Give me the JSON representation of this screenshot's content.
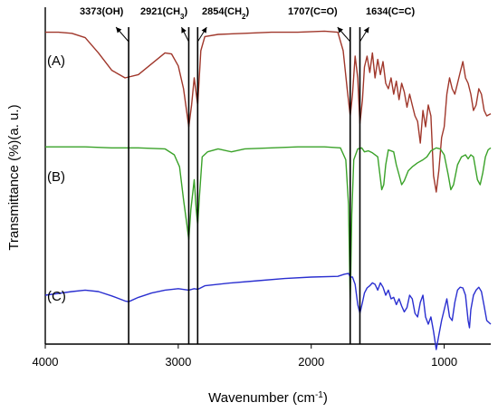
{
  "chart_data": {
    "type": "line",
    "title": "",
    "xlabel": "Wavenumber (cm",
    "xlabel_sup": "-1",
    "xlabel_close": ")",
    "ylabel": "Transmittance (%)(a. u.)",
    "xlim": [
      4000,
      650
    ],
    "x_reversed": true,
    "xticks": [
      4000,
      3000,
      2000,
      1000
    ],
    "tick_labels": [
      "4000",
      "3000",
      "2000",
      "1000"
    ],
    "grid": false,
    "legend": "none",
    "annotations": [
      {
        "wavenumber": 3373,
        "text": "3373(OH)"
      },
      {
        "wavenumber": 2921,
        "text": "2921(CH",
        "sub": "3",
        "close": ")"
      },
      {
        "wavenumber": 2854,
        "text": "2854(CH",
        "sub": "2",
        "close": ")"
      },
      {
        "wavenumber": 1707,
        "text": "1707(C=O)"
      },
      {
        "wavenumber": 1634,
        "text": "1634(C=C)"
      }
    ],
    "series": [
      {
        "label": "(A)",
        "color": "#a0372b",
        "points": [
          [
            4000,
            0.97
          ],
          [
            3900,
            0.97
          ],
          [
            3800,
            0.96
          ],
          [
            3700,
            0.92
          ],
          [
            3600,
            0.78
          ],
          [
            3500,
            0.62
          ],
          [
            3400,
            0.55
          ],
          [
            3300,
            0.58
          ],
          [
            3200,
            0.68
          ],
          [
            3100,
            0.78
          ],
          [
            3050,
            0.77
          ],
          [
            3000,
            0.66
          ],
          [
            2960,
            0.45
          ],
          [
            2921,
            0.1
          ],
          [
            2900,
            0.3
          ],
          [
            2880,
            0.55
          ],
          [
            2854,
            0.3
          ],
          [
            2830,
            0.8
          ],
          [
            2800,
            0.93
          ],
          [
            2700,
            0.95
          ],
          [
            2500,
            0.96
          ],
          [
            2300,
            0.97
          ],
          [
            2100,
            0.97
          ],
          [
            1900,
            0.98
          ],
          [
            1800,
            0.97
          ],
          [
            1760,
            0.8
          ],
          [
            1730,
            0.45
          ],
          [
            1707,
            0.2
          ],
          [
            1690,
            0.4
          ],
          [
            1670,
            0.75
          ],
          [
            1650,
            0.55
          ],
          [
            1634,
            0.13
          ],
          [
            1615,
            0.35
          ],
          [
            1600,
            0.65
          ],
          [
            1580,
            0.75
          ],
          [
            1560,
            0.6
          ],
          [
            1540,
            0.78
          ],
          [
            1520,
            0.55
          ],
          [
            1500,
            0.72
          ],
          [
            1480,
            0.58
          ],
          [
            1460,
            0.7
          ],
          [
            1440,
            0.5
          ],
          [
            1420,
            0.45
          ],
          [
            1400,
            0.55
          ],
          [
            1380,
            0.4
          ],
          [
            1360,
            0.52
          ],
          [
            1340,
            0.35
          ],
          [
            1320,
            0.5
          ],
          [
            1300,
            0.42
          ],
          [
            1280,
            0.28
          ],
          [
            1260,
            0.4
          ],
          [
            1240,
            0.3
          ],
          [
            1220,
            0.2
          ],
          [
            1200,
            0.15
          ],
          [
            1180,
            -0.05
          ],
          [
            1160,
            0.25
          ],
          [
            1140,
            0.1
          ],
          [
            1120,
            0.3
          ],
          [
            1100,
            0.2
          ],
          [
            1080,
            -0.35
          ],
          [
            1060,
            -0.5
          ],
          [
            1040,
            -0.3
          ],
          [
            1020,
            0.0
          ],
          [
            1000,
            0.1
          ],
          [
            980,
            0.4
          ],
          [
            960,
            0.55
          ],
          [
            940,
            0.45
          ],
          [
            920,
            0.4
          ],
          [
            900,
            0.5
          ],
          [
            880,
            0.6
          ],
          [
            860,
            0.7
          ],
          [
            840,
            0.55
          ],
          [
            820,
            0.5
          ],
          [
            800,
            0.4
          ],
          [
            780,
            0.25
          ],
          [
            760,
            0.3
          ],
          [
            740,
            0.45
          ],
          [
            720,
            0.4
          ],
          [
            700,
            0.25
          ],
          [
            680,
            0.2
          ],
          [
            650,
            0.22
          ]
        ]
      },
      {
        "label": "(B)",
        "color": "#3aa229",
        "points": [
          [
            4000,
            0.98
          ],
          [
            3700,
            0.98
          ],
          [
            3500,
            0.97
          ],
          [
            3300,
            0.97
          ],
          [
            3100,
            0.96
          ],
          [
            3030,
            0.9
          ],
          [
            2990,
            0.78
          ],
          [
            2960,
            0.45
          ],
          [
            2935,
            0.2
          ],
          [
            2921,
            0.05
          ],
          [
            2905,
            0.35
          ],
          [
            2880,
            0.65
          ],
          [
            2865,
            0.35
          ],
          [
            2854,
            0.2
          ],
          [
            2840,
            0.5
          ],
          [
            2820,
            0.88
          ],
          [
            2780,
            0.93
          ],
          [
            2700,
            0.96
          ],
          [
            2600,
            0.93
          ],
          [
            2500,
            0.96
          ],
          [
            2300,
            0.97
          ],
          [
            2100,
            0.98
          ],
          [
            1900,
            0.98
          ],
          [
            1780,
            0.97
          ],
          [
            1740,
            0.85
          ],
          [
            1720,
            0.4
          ],
          [
            1707,
            -0.6
          ],
          [
            1695,
            0.3
          ],
          [
            1680,
            0.85
          ],
          [
            1650,
            0.96
          ],
          [
            1620,
            0.97
          ],
          [
            1600,
            0.93
          ],
          [
            1570,
            0.94
          ],
          [
            1540,
            0.92
          ],
          [
            1500,
            0.88
          ],
          [
            1470,
            0.55
          ],
          [
            1455,
            0.6
          ],
          [
            1440,
            0.8
          ],
          [
            1420,
            0.95
          ],
          [
            1380,
            0.93
          ],
          [
            1360,
            0.8
          ],
          [
            1340,
            0.7
          ],
          [
            1320,
            0.6
          ],
          [
            1300,
            0.64
          ],
          [
            1270,
            0.74
          ],
          [
            1240,
            0.78
          ],
          [
            1200,
            0.82
          ],
          [
            1160,
            0.85
          ],
          [
            1130,
            0.88
          ],
          [
            1100,
            0.94
          ],
          [
            1060,
            0.97
          ],
          [
            1030,
            0.96
          ],
          [
            1000,
            0.9
          ],
          [
            970,
            0.7
          ],
          [
            950,
            0.55
          ],
          [
            930,
            0.6
          ],
          [
            900,
            0.8
          ],
          [
            870,
            0.88
          ],
          [
            840,
            0.9
          ],
          [
            820,
            0.86
          ],
          [
            800,
            0.9
          ],
          [
            780,
            0.88
          ],
          [
            750,
            0.65
          ],
          [
            730,
            0.6
          ],
          [
            710,
            0.72
          ],
          [
            690,
            0.88
          ],
          [
            670,
            0.95
          ],
          [
            650,
            0.97
          ]
        ]
      },
      {
        "label": "(C)",
        "color": "#2a2fd0",
        "points": [
          [
            4000,
            0.55
          ],
          [
            3800,
            0.6
          ],
          [
            3700,
            0.62
          ],
          [
            3600,
            0.6
          ],
          [
            3500,
            0.54
          ],
          [
            3400,
            0.47
          ],
          [
            3373,
            0.46
          ],
          [
            3300,
            0.52
          ],
          [
            3200,
            0.58
          ],
          [
            3100,
            0.62
          ],
          [
            3000,
            0.64
          ],
          [
            2921,
            0.62
          ],
          [
            2880,
            0.64
          ],
          [
            2854,
            0.63
          ],
          [
            2800,
            0.68
          ],
          [
            2600,
            0.72
          ],
          [
            2400,
            0.75
          ],
          [
            2200,
            0.78
          ],
          [
            2000,
            0.8
          ],
          [
            1800,
            0.81
          ],
          [
            1750,
            0.84
          ],
          [
            1720,
            0.85
          ],
          [
            1707,
            0.8
          ],
          [
            1690,
            0.8
          ],
          [
            1670,
            0.7
          ],
          [
            1650,
            0.42
          ],
          [
            1634,
            0.3
          ],
          [
            1615,
            0.45
          ],
          [
            1600,
            0.58
          ],
          [
            1580,
            0.65
          ],
          [
            1560,
            0.68
          ],
          [
            1540,
            0.72
          ],
          [
            1520,
            0.7
          ],
          [
            1500,
            0.62
          ],
          [
            1480,
            0.72
          ],
          [
            1460,
            0.66
          ],
          [
            1440,
            0.55
          ],
          [
            1420,
            0.62
          ],
          [
            1400,
            0.5
          ],
          [
            1380,
            0.52
          ],
          [
            1360,
            0.42
          ],
          [
            1340,
            0.5
          ],
          [
            1320,
            0.4
          ],
          [
            1300,
            0.32
          ],
          [
            1280,
            0.38
          ],
          [
            1260,
            0.55
          ],
          [
            1240,
            0.5
          ],
          [
            1220,
            0.3
          ],
          [
            1200,
            0.25
          ],
          [
            1180,
            0.45
          ],
          [
            1160,
            0.55
          ],
          [
            1140,
            0.25
          ],
          [
            1120,
            0.15
          ],
          [
            1100,
            0.25
          ],
          [
            1080,
            0.05
          ],
          [
            1060,
            -0.2
          ],
          [
            1040,
            0.0
          ],
          [
            1020,
            0.2
          ],
          [
            1000,
            0.35
          ],
          [
            980,
            0.5
          ],
          [
            960,
            0.25
          ],
          [
            940,
            0.2
          ],
          [
            920,
            0.45
          ],
          [
            900,
            0.62
          ],
          [
            880,
            0.66
          ],
          [
            860,
            0.65
          ],
          [
            840,
            0.55
          ],
          [
            820,
            0.2
          ],
          [
            810,
            0.1
          ],
          [
            800,
            0.35
          ],
          [
            780,
            0.55
          ],
          [
            760,
            0.62
          ],
          [
            740,
            0.66
          ],
          [
            720,
            0.6
          ],
          [
            700,
            0.4
          ],
          [
            680,
            0.2
          ],
          [
            650,
            0.15
          ]
        ]
      }
    ]
  }
}
